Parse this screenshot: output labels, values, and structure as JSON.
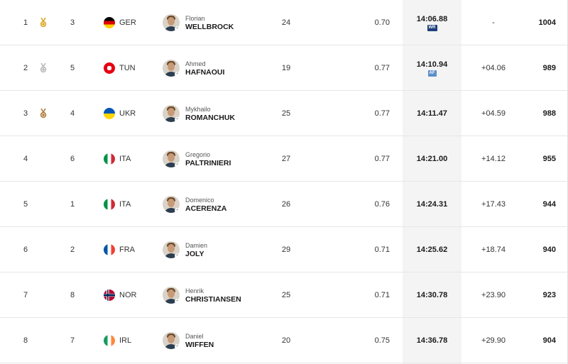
{
  "results": [
    {
      "rank": "1",
      "medal": "gold",
      "lane": "3",
      "nat": "GER",
      "first": "Florian",
      "last": "WELLBROCK",
      "age": "24",
      "rt": "0.70",
      "time": "14:06.88",
      "record": "WR",
      "behind": "-",
      "points": "1004"
    },
    {
      "rank": "2",
      "medal": "silver",
      "lane": "5",
      "nat": "TUN",
      "first": "Ahmed",
      "last": "HAFNAOUI",
      "age": "19",
      "rt": "0.77",
      "time": "14:10.94",
      "record": "AF",
      "behind": "+04.06",
      "points": "989"
    },
    {
      "rank": "3",
      "medal": "bronze",
      "lane": "4",
      "nat": "UKR",
      "first": "Mykhailo",
      "last": "ROMANCHUK",
      "age": "25",
      "rt": "0.77",
      "time": "14:11.47",
      "record": "",
      "behind": "+04.59",
      "points": "988"
    },
    {
      "rank": "4",
      "medal": "",
      "lane": "6",
      "nat": "ITA",
      "first": "Gregorio",
      "last": "PALTRINIERI",
      "age": "27",
      "rt": "0.77",
      "time": "14:21.00",
      "record": "",
      "behind": "+14.12",
      "points": "955"
    },
    {
      "rank": "5",
      "medal": "",
      "lane": "1",
      "nat": "ITA",
      "first": "Domenico",
      "last": "ACERENZA",
      "age": "26",
      "rt": "0.76",
      "time": "14:24.31",
      "record": "",
      "behind": "+17.43",
      "points": "944"
    },
    {
      "rank": "6",
      "medal": "",
      "lane": "2",
      "nat": "FRA",
      "first": "Damien",
      "last": "JOLY",
      "age": "29",
      "rt": "0.71",
      "time": "14:25.62",
      "record": "",
      "behind": "+18.74",
      "points": "940"
    },
    {
      "rank": "7",
      "medal": "",
      "lane": "8",
      "nat": "NOR",
      "first": "Henrik",
      "last": "CHRISTIANSEN",
      "age": "25",
      "rt": "0.71",
      "time": "14:30.78",
      "record": "",
      "behind": "+23.90",
      "points": "923"
    },
    {
      "rank": "8",
      "medal": "",
      "lane": "7",
      "nat": "IRL",
      "first": "Daniel",
      "last": "WIFFEN",
      "age": "20",
      "rt": "0.75",
      "time": "14:36.78",
      "record": "",
      "behind": "+29.90",
      "points": "904"
    }
  ],
  "colors": {
    "gold": "#d9a520",
    "silver": "#b8b8b8",
    "bronze": "#b07a3a",
    "wr_badge": "#1c3f7a",
    "af_badge": "#5c8fc9"
  }
}
